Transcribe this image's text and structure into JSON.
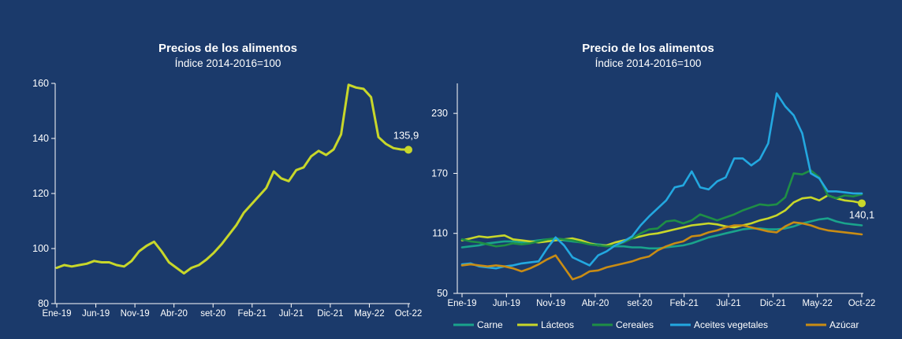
{
  "colors": {
    "background": "#1b3a6b",
    "carne": "#1aa38c",
    "lacteos": "#c8d72a",
    "cereales": "#1f8f45",
    "aceites": "#23a8e0",
    "azucar": "#c98c14",
    "index": "#c8d72a"
  },
  "chart_data": [
    {
      "type": "line",
      "title": "Precios de los alimentos",
      "subtitle": "Índice 2014-2016=100",
      "ylim": [
        80,
        160
      ],
      "yticks": [
        "80",
        "100",
        "120",
        "140",
        "160"
      ],
      "xlabels": [
        "Ene-19",
        "Jun-19",
        "Nov-19",
        "Abr-20",
        "set-20",
        "Feb-21",
        "Jul-21",
        "Dic-21",
        "May-22",
        "Oct-22"
      ],
      "end_label": "135,9",
      "series": [
        {
          "color_key": "index",
          "values": [
            93,
            94,
            93.5,
            94,
            94.5,
            95.5,
            95,
            95,
            94,
            93.5,
            95.5,
            99,
            101,
            102.5,
            99,
            95,
            93,
            91,
            93,
            94,
            96,
            98.5,
            101.5,
            105,
            108.5,
            113,
            116,
            119,
            122,
            128,
            125.5,
            124.5,
            128.5,
            129.5,
            133.5,
            135.5,
            134,
            136,
            141.5,
            159.5,
            158.5,
            158,
            155,
            140.5,
            138,
            136.5,
            136,
            135.9
          ]
        }
      ]
    },
    {
      "type": "line",
      "title": "Precio de los alimentos",
      "subtitle": "Índice 2014-2016=100",
      "ylim": [
        50,
        260
      ],
      "yticks": [
        "50",
        "110",
        "170",
        "230"
      ],
      "xlabels": [
        "Ene-19",
        "Jun-19",
        "Nov-19",
        "Abr-20",
        "set-20",
        "Feb-21",
        "Jul-21",
        "Dic-21",
        "May-22",
        "Oct-22"
      ],
      "end_label": "140,1",
      "series": [
        {
          "name": "Carne",
          "color_key": "carne",
          "values": [
            96,
            97,
            98,
            100,
            101,
            102,
            102,
            101,
            102,
            103,
            104,
            104,
            103,
            102,
            101,
            100,
            99,
            98,
            97,
            97,
            96,
            96,
            95,
            95,
            96,
            97,
            98,
            100,
            103,
            106,
            108,
            110,
            112,
            114,
            115,
            115,
            114,
            114,
            115,
            117,
            120,
            122,
            124,
            125,
            122,
            120,
            119,
            118
          ]
        },
        {
          "name": "Lácteos",
          "color_key": "lacteos",
          "values": [
            103,
            105,
            107,
            106,
            107,
            108,
            104,
            103,
            102,
            101,
            102,
            103,
            104,
            105,
            103,
            100,
            98,
            98,
            101,
            103,
            105,
            107,
            109,
            110,
            112,
            114,
            116,
            118,
            119,
            120,
            119,
            117,
            116,
            118,
            120,
            123,
            125,
            128,
            133,
            141,
            145,
            146,
            143,
            148,
            145,
            143,
            142,
            140.1
          ]
        },
        {
          "name": "Cereales",
          "color_key": "cereales",
          "values": [
            104,
            102,
            101,
            99,
            97,
            98,
            100,
            99,
            100,
            102,
            104,
            105,
            104,
            103,
            101,
            99,
            98,
            97,
            98,
            101,
            105,
            110,
            114,
            115,
            122,
            123,
            120,
            123,
            129,
            126,
            123,
            126,
            129,
            133,
            136,
            139,
            138,
            139,
            146,
            170,
            169,
            173,
            166,
            148,
            145,
            148,
            147,
            149
          ]
        },
        {
          "name": "Aceites vegetales",
          "color_key": "aceites",
          "values": [
            79,
            80,
            77,
            76,
            75,
            77,
            78,
            80,
            81,
            82,
            95,
            106,
            98,
            86,
            82,
            78,
            88,
            92,
            98,
            102,
            107,
            118,
            127,
            135,
            143,
            156,
            158,
            172,
            156,
            154,
            162,
            166,
            185,
            185,
            178,
            184,
            200,
            250,
            237,
            228,
            210,
            170,
            165,
            152,
            152,
            151,
            150,
            150
          ]
        },
        {
          "name": "Azúcar",
          "color_key": "azucar",
          "values": [
            78,
            79,
            78,
            77,
            78,
            77,
            75,
            72,
            75,
            79,
            84,
            88,
            76,
            64,
            67,
            72,
            73,
            76,
            78,
            80,
            82,
            85,
            87,
            93,
            97,
            100,
            102,
            107,
            108,
            111,
            113,
            116,
            118,
            118,
            116,
            114,
            112,
            111,
            117,
            121,
            120,
            118,
            115,
            113,
            112,
            111,
            110,
            109
          ]
        }
      ]
    }
  ]
}
